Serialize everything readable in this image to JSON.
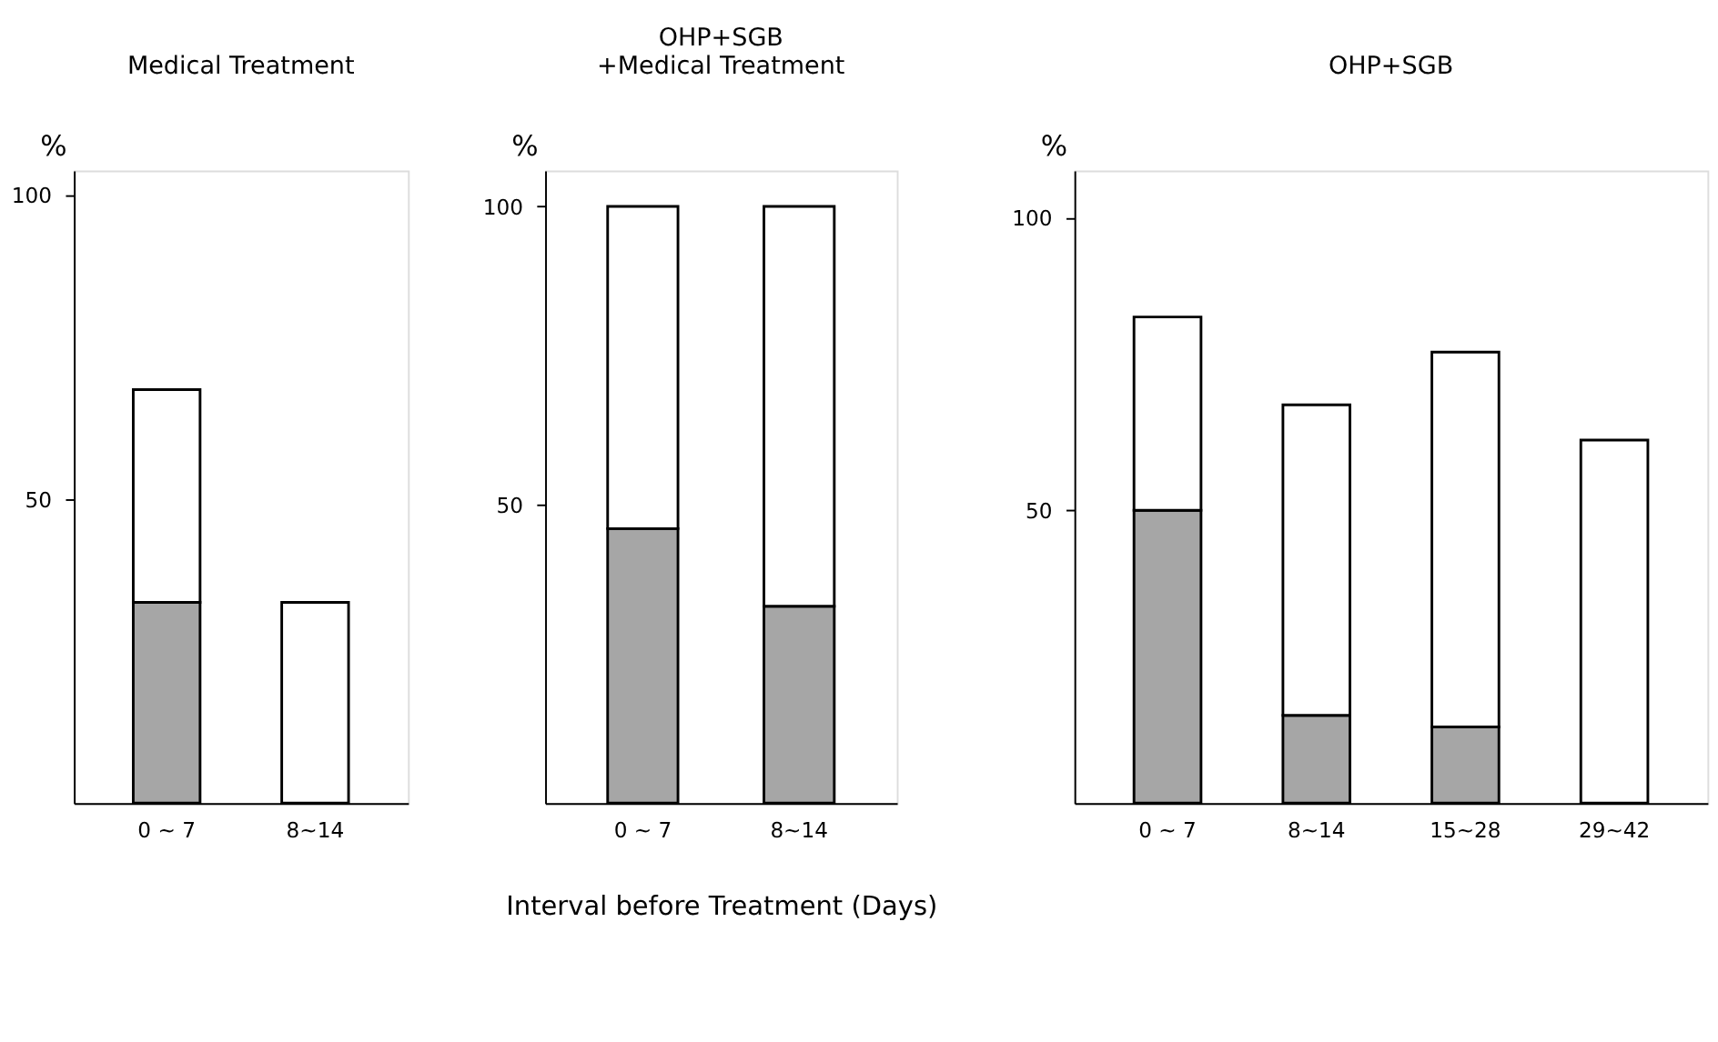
{
  "chart_data": [
    {
      "type": "bar",
      "stacked": true,
      "title": "Medical Treatment",
      "ylabel": "%",
      "categories": [
        "0 ~ 7",
        "8~14"
      ],
      "ylim": [
        0,
        104
      ],
      "yticks": [
        50,
        100
      ],
      "grid": false,
      "series": [
        {
          "color": "#a6a6a6",
          "values": [
            33,
            null
          ]
        },
        {
          "color": "#ffffff",
          "values": [
            35,
            33
          ]
        }
      ]
    },
    {
      "type": "bar",
      "stacked": true,
      "title": "OHP+SGB\n+Medical Treatment",
      "ylabel": "%",
      "xlabel": "Interval before Treatment (Days)",
      "categories": [
        "0 ~ 7",
        "8~14"
      ],
      "ylim": [
        0,
        106
      ],
      "yticks": [
        50,
        100
      ],
      "grid": false,
      "series": [
        {
          "color": "#a6a6a6",
          "values": [
            46,
            33
          ]
        },
        {
          "color": "#ffffff",
          "values": [
            54,
            67
          ]
        }
      ]
    },
    {
      "type": "bar",
      "stacked": true,
      "title": "OHP+SGB",
      "ylabel": "%",
      "categories": [
        "0 ~ 7",
        "8~14",
        "15~28",
        "29~42"
      ],
      "ylim": [
        0,
        108
      ],
      "yticks": [
        50,
        100
      ],
      "grid": false,
      "series": [
        {
          "color": "#a6a6a6",
          "values": [
            50,
            15,
            13,
            null
          ]
        },
        {
          "color": "#ffffff",
          "values": [
            33,
            53,
            64,
            62
          ]
        }
      ]
    }
  ]
}
